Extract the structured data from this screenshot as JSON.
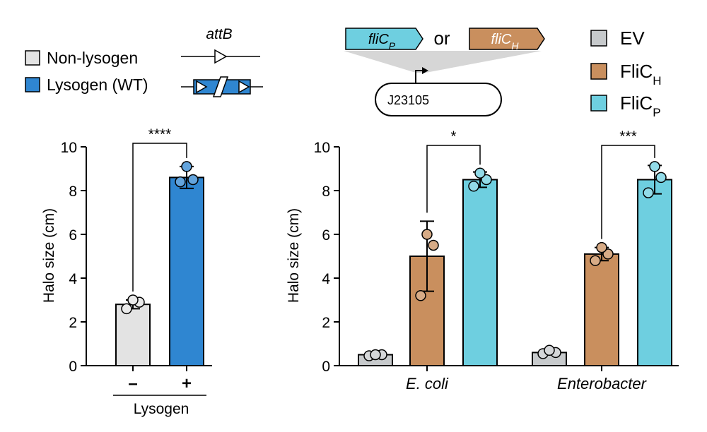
{
  "legend_left": {
    "items": [
      {
        "label": "Non-lysogen",
        "color": "#e3e3e3"
      },
      {
        "label": "Lysogen (WT)",
        "color": "#2f86d1"
      }
    ],
    "attB_label": "attB"
  },
  "schematic": {
    "gene_p": {
      "base": "fliC",
      "sub": "P",
      "color": "#6ecfe0"
    },
    "or_text": "or",
    "gene_h": {
      "base": "fliC",
      "sub": "H",
      "color": "#c98f5e"
    },
    "promoter": "J23105"
  },
  "legend_right": {
    "items": [
      {
        "label": "EV",
        "sub": "",
        "color": "#c7cacc"
      },
      {
        "label": "FliC",
        "sub": "H",
        "color": "#c98f5e"
      },
      {
        "label": "FliC",
        "sub": "P",
        "color": "#6ecfe0"
      }
    ]
  },
  "chart_data": [
    {
      "type": "bar",
      "ylabel": "Halo size (cm)",
      "xlabel": "Lysogen",
      "ylim": [
        0,
        10
      ],
      "yticks": [
        "0",
        "2",
        "4",
        "6",
        "8",
        "10"
      ],
      "categories": [
        "–",
        "+"
      ],
      "colors": [
        "#e3e3e3",
        "#2f86d1"
      ],
      "values": [
        2.8,
        8.6
      ],
      "errors": [
        0.2,
        0.5
      ],
      "points": [
        [
          2.6,
          2.9,
          3.0
        ],
        [
          8.4,
          8.5,
          9.1
        ]
      ],
      "significance": [
        {
          "from": 0,
          "to": 1,
          "label": "****"
        }
      ]
    },
    {
      "type": "bar",
      "ylabel": "Halo size (cm)",
      "ylim": [
        0,
        10
      ],
      "yticks": [
        "0",
        "2",
        "4",
        "6",
        "8",
        "10"
      ],
      "groups": [
        "E. coli",
        "Enterobacter"
      ],
      "series": [
        {
          "name": "EV",
          "color": "#c7cacc",
          "values": [
            0.5,
            0.6
          ],
          "errors": [
            0.05,
            0.08
          ],
          "points": [
            [
              0.45,
              0.5,
              0.5
            ],
            [
              0.55,
              0.6,
              0.7
            ]
          ]
        },
        {
          "name": "FliCH",
          "color": "#c98f5e",
          "values": [
            5.0,
            5.1
          ],
          "errors": [
            1.6,
            0.3
          ],
          "points": [
            [
              3.2,
              5.5,
              6.0
            ],
            [
              4.8,
              5.1,
              5.4
            ]
          ]
        },
        {
          "name": "FliCP",
          "color": "#6ecfe0",
          "values": [
            8.5,
            8.5
          ],
          "errors": [
            0.35,
            0.65
          ],
          "points": [
            [
              8.2,
              8.5,
              8.8
            ],
            [
              7.9,
              8.6,
              9.1
            ]
          ]
        }
      ],
      "significance": [
        {
          "group": 0,
          "from": 1,
          "to": 2,
          "label": "*"
        },
        {
          "group": 1,
          "from": 1,
          "to": 2,
          "label": "***"
        }
      ]
    }
  ]
}
